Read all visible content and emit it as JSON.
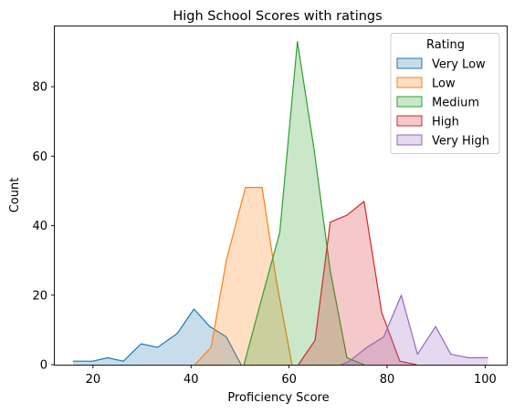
{
  "chart_data": {
    "type": "area",
    "title": "High School Scores with ratings",
    "xlabel": "Proficiency Score",
    "ylabel": "Count",
    "xlim": [
      12.2,
      104.4
    ],
    "ylim": [
      0,
      97.6
    ],
    "xticks": [
      20,
      40,
      60,
      80,
      100
    ],
    "yticks": [
      0,
      20,
      40,
      60,
      80
    ],
    "grid": false,
    "legend": {
      "title": "Rating",
      "position": "top-right"
    },
    "series": [
      {
        "name": "Very Low",
        "color": "#1f77b4",
        "x": [
          15.9,
          19.9,
          23.0,
          26.2,
          29.8,
          33.2,
          37.2,
          40.6,
          43.8,
          47.2,
          50.2
        ],
        "y": [
          1,
          1,
          2,
          1,
          6,
          5,
          9,
          16,
          11,
          8,
          0
        ]
      },
      {
        "name": "Low",
        "color": "#ff7f0e",
        "x": [
          40.8,
          44.1,
          47.2,
          51.1,
          54.5,
          57.3,
          60.6
        ],
        "y": [
          0,
          5,
          30,
          51,
          51,
          25,
          0
        ]
      },
      {
        "name": "Medium",
        "color": "#2ca02c",
        "x": [
          50.8,
          54.6,
          58.1,
          61.7,
          65.1,
          68.4,
          71.8,
          75.3
        ],
        "y": [
          0,
          20,
          38,
          93,
          62,
          27,
          2,
          0
        ]
      },
      {
        "name": "High",
        "color": "#d62728",
        "x": [
          61.9,
          65.3,
          68.4,
          71.8,
          75.3,
          78.9,
          82.6,
          86.0
        ],
        "y": [
          0,
          7,
          41,
          43,
          47,
          15,
          1,
          0
        ]
      },
      {
        "name": "Very High",
        "color": "#9467bd",
        "x": [
          70.6,
          72.3,
          75.9,
          79.3,
          82.9,
          86.2,
          89.9,
          93.0,
          96.6,
          100.6
        ],
        "y": [
          0,
          1,
          5,
          8,
          20,
          3,
          11,
          3,
          2,
          2
        ]
      }
    ]
  }
}
